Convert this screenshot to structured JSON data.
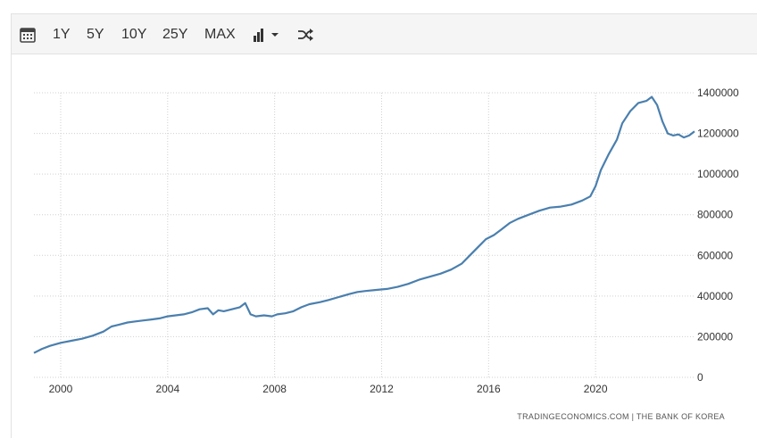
{
  "toolbar": {
    "calendar_icon": "calendar-icon",
    "ranges": [
      "1Y",
      "5Y",
      "10Y",
      "25Y",
      "MAX"
    ],
    "chart_type_icon": "bar-chart-icon",
    "dropdown_icon": "caret-down-icon",
    "shuffle_icon": "shuffle-icon"
  },
  "source_text": "TRADINGECONOMICS.COM  |  THE BANK OF KOREA",
  "colors": {
    "line": "#4a7fae",
    "grid": "#d0d0d0"
  },
  "chart_data": {
    "type": "line",
    "title": "",
    "xlabel": "",
    "ylabel": "",
    "xlim": [
      1999.0,
      2023.7
    ],
    "ylim": [
      0,
      1400000
    ],
    "x_ticks": [
      2000,
      2004,
      2008,
      2012,
      2016,
      2020
    ],
    "y_ticks": [
      0,
      200000,
      400000,
      600000,
      800000,
      1000000,
      1200000,
      1400000
    ],
    "grid": true,
    "series": [
      {
        "x": [
          1999.0,
          1999.3,
          1999.6,
          2000.0,
          2000.4,
          2000.8,
          2001.2,
          2001.6,
          2001.9,
          2002.2,
          2002.5,
          2002.8,
          2003.1,
          2003.4,
          2003.7,
          2004.0,
          2004.3,
          2004.6,
          2004.9,
          2005.2,
          2005.5,
          2005.7,
          2005.9,
          2006.1,
          2006.4,
          2006.7,
          2006.9,
          2007.1,
          2007.3,
          2007.6,
          2007.9,
          2008.1,
          2008.4,
          2008.7,
          2009.0,
          2009.3,
          2009.7,
          2010.0,
          2010.4,
          2010.8,
          2011.1,
          2011.4,
          2011.8,
          2012.2,
          2012.6,
          2013.0,
          2013.4,
          2013.8,
          2014.2,
          2014.6,
          2015.0,
          2015.3,
          2015.6,
          2015.9,
          2016.2,
          2016.5,
          2016.8,
          2017.1,
          2017.5,
          2017.9,
          2018.3,
          2018.7,
          2019.1,
          2019.5,
          2019.8,
          2020.0,
          2020.2,
          2020.5,
          2020.8,
          2021.0,
          2021.3,
          2021.6,
          2021.9,
          2022.1,
          2022.3,
          2022.5,
          2022.7,
          2022.9,
          2023.1,
          2023.3,
          2023.5,
          2023.7
        ],
        "values": [
          120000,
          140000,
          155000,
          170000,
          180000,
          190000,
          205000,
          225000,
          250000,
          260000,
          270000,
          275000,
          280000,
          285000,
          290000,
          300000,
          305000,
          310000,
          320000,
          335000,
          340000,
          310000,
          330000,
          325000,
          335000,
          345000,
          365000,
          310000,
          300000,
          305000,
          300000,
          310000,
          315000,
          325000,
          345000,
          360000,
          370000,
          380000,
          395000,
          410000,
          420000,
          425000,
          430000,
          435000,
          445000,
          460000,
          480000,
          495000,
          510000,
          530000,
          560000,
          600000,
          640000,
          680000,
          700000,
          730000,
          760000,
          780000,
          800000,
          820000,
          835000,
          840000,
          850000,
          870000,
          890000,
          940000,
          1020000,
          1100000,
          1170000,
          1250000,
          1310000,
          1350000,
          1360000,
          1380000,
          1340000,
          1260000,
          1200000,
          1190000,
          1195000,
          1180000,
          1190000,
          1210000
        ]
      }
    ]
  }
}
